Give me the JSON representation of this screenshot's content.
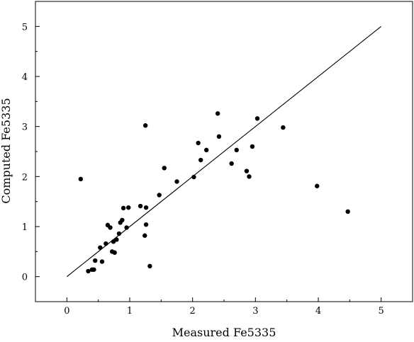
{
  "chart_data": {
    "type": "scatter",
    "xlabel": "Measured Fe5335",
    "ylabel": "Computed Fe5335",
    "xlim": [
      -0.5,
      5.5
    ],
    "ylim": [
      -0.5,
      5.5
    ],
    "x_ticks": [
      0,
      1,
      2,
      3,
      4,
      5
    ],
    "y_ticks": [
      0,
      1,
      2,
      3,
      4,
      5
    ],
    "x_tick_labels": [
      "0",
      "1",
      "2",
      "3",
      "4",
      "5"
    ],
    "y_tick_labels": [
      "0",
      "1",
      "2",
      "3",
      "4",
      "5"
    ],
    "grid": false,
    "reference_line": {
      "from": [
        0,
        0
      ],
      "to": [
        5,
        5
      ]
    },
    "series": [
      {
        "points": [
          [
            0.22,
            1.95
          ],
          [
            0.34,
            0.11
          ],
          [
            0.4,
            0.14
          ],
          [
            0.43,
            0.14
          ],
          [
            0.45,
            0.32
          ],
          [
            0.53,
            0.58
          ],
          [
            0.56,
            0.3
          ],
          [
            0.62,
            0.66
          ],
          [
            0.65,
            1.03
          ],
          [
            0.69,
            0.98
          ],
          [
            0.72,
            0.5
          ],
          [
            0.74,
            0.7
          ],
          [
            0.76,
            0.48
          ],
          [
            0.79,
            0.74
          ],
          [
            0.83,
            0.86
          ],
          [
            0.85,
            1.08
          ],
          [
            0.88,
            1.13
          ],
          [
            0.9,
            1.37
          ],
          [
            0.95,
            0.98
          ],
          [
            0.98,
            1.38
          ],
          [
            1.17,
            1.41
          ],
          [
            1.24,
            0.82
          ],
          [
            1.25,
            3.02
          ],
          [
            1.26,
            1.38
          ],
          [
            1.26,
            1.04
          ],
          [
            1.32,
            0.21
          ],
          [
            1.47,
            1.63
          ],
          [
            1.55,
            2.17
          ],
          [
            1.75,
            1.9
          ],
          [
            2.02,
            1.99
          ],
          [
            2.09,
            2.67
          ],
          [
            2.13,
            2.33
          ],
          [
            2.22,
            2.53
          ],
          [
            2.4,
            3.26
          ],
          [
            2.42,
            2.8
          ],
          [
            2.62,
            2.26
          ],
          [
            2.7,
            2.53
          ],
          [
            2.86,
            2.11
          ],
          [
            2.9,
            2.0
          ],
          [
            2.95,
            2.6
          ],
          [
            3.03,
            3.16
          ],
          [
            3.44,
            2.98
          ],
          [
            3.98,
            1.81
          ],
          [
            4.47,
            1.3
          ]
        ]
      }
    ]
  }
}
